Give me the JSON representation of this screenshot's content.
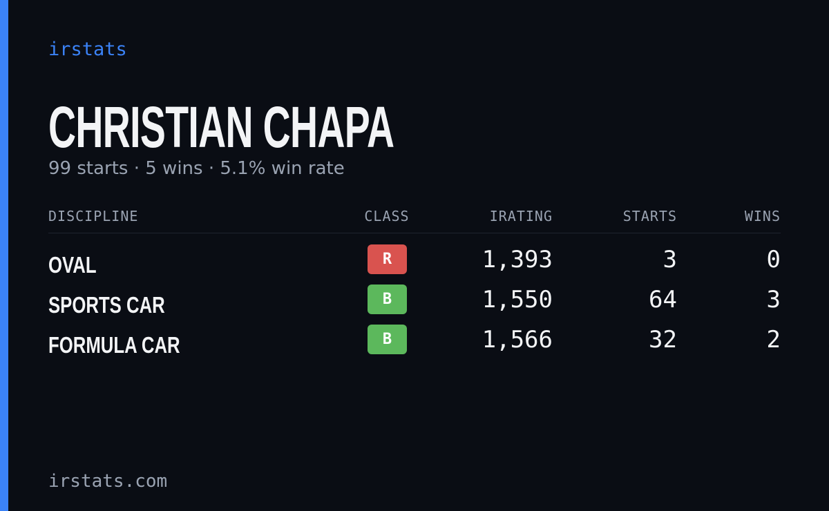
{
  "brand": "irstats",
  "driver": {
    "name": "CHRISTIAN CHAPA",
    "summary": "99 starts · 5 wins · 5.1% win rate"
  },
  "table": {
    "headers": [
      "DISCIPLINE",
      "CLASS",
      "IRATING",
      "STARTS",
      "WINS"
    ],
    "rows": [
      {
        "discipline": "OVAL",
        "class": "R",
        "class_color": "#d9534f",
        "irating": "1,393",
        "starts": "3",
        "wins": "0"
      },
      {
        "discipline": "SPORTS CAR",
        "class": "B",
        "class_color": "#5cb85c",
        "irating": "1,550",
        "starts": "64",
        "wins": "3"
      },
      {
        "discipline": "FORMULA CAR",
        "class": "B",
        "class_color": "#5cb85c",
        "irating": "1,566",
        "starts": "32",
        "wins": "2"
      }
    ]
  },
  "footer": "irstats.com"
}
